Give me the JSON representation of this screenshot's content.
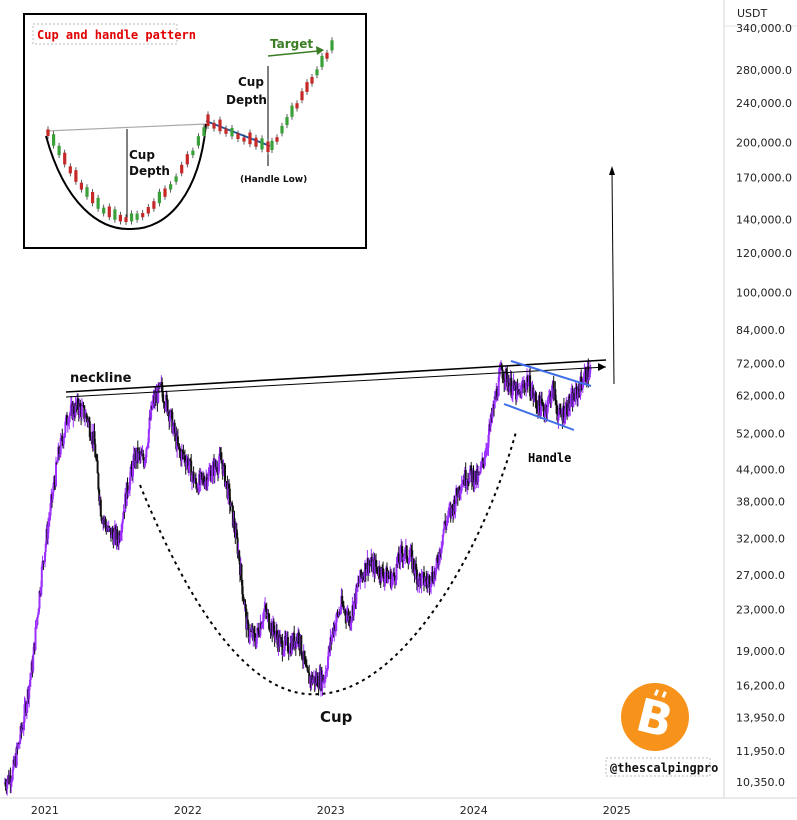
{
  "chart_data": {
    "type": "candlestick",
    "title": "",
    "currency_label": "USDT",
    "y_scale": "log",
    "ylim": [
      9800,
      380000
    ],
    "y_ticks": [
      "340,000.0",
      "280,000.0",
      "240,000.0",
      "200,000.0",
      "170,000.0",
      "140,000.0",
      "120,000.0",
      "100,000.0",
      "84,000.0",
      "72,000.0",
      "62,000.0",
      "52,000.0",
      "44,000.0",
      "38,000.0",
      "32,000.0",
      "27,000.0",
      "23,000.0",
      "19,000.0",
      "16,200.0",
      "13,950.0",
      "11,950.0",
      "10,350.0"
    ],
    "y_tick_values": [
      340000,
      280000,
      240000,
      200000,
      170000,
      140000,
      120000,
      100000,
      84000,
      72000,
      62000,
      52000,
      44000,
      38000,
      32000,
      27000,
      23000,
      19000,
      16200,
      13950,
      11950,
      10350
    ],
    "x_ticks": [
      "2021",
      "2022",
      "2023",
      "2024",
      "2025"
    ],
    "x_tick_values": [
      2021.0,
      2022.0,
      2023.0,
      2024.0,
      2025.0
    ],
    "xlim": [
      2020.7,
      2025.75
    ],
    "grid": false,
    "price_path": [
      [
        2020.72,
        10300
      ],
      [
        2020.78,
        10800
      ],
      [
        2020.85,
        13500
      ],
      [
        2020.92,
        18000
      ],
      [
        2020.98,
        27000
      ],
      [
        2021.04,
        36000
      ],
      [
        2021.1,
        47000
      ],
      [
        2021.17,
        57000
      ],
      [
        2021.24,
        59000
      ],
      [
        2021.3,
        56000
      ],
      [
        2021.35,
        50000
      ],
      [
        2021.4,
        36000
      ],
      [
        2021.45,
        33000
      ],
      [
        2021.52,
        32000
      ],
      [
        2021.58,
        40000
      ],
      [
        2021.64,
        47000
      ],
      [
        2021.7,
        46000
      ],
      [
        2021.76,
        60000
      ],
      [
        2021.82,
        64000
      ],
      [
        2021.88,
        57000
      ],
      [
        2021.94,
        48000
      ],
      [
        2022.0,
        46000
      ],
      [
        2022.06,
        41000
      ],
      [
        2022.12,
        42000
      ],
      [
        2022.18,
        44000
      ],
      [
        2022.24,
        46000
      ],
      [
        2022.3,
        38000
      ],
      [
        2022.36,
        30000
      ],
      [
        2022.42,
        21000
      ],
      [
        2022.48,
        20000
      ],
      [
        2022.54,
        23000
      ],
      [
        2022.6,
        21000
      ],
      [
        2022.66,
        19500
      ],
      [
        2022.72,
        19500
      ],
      [
        2022.78,
        20500
      ],
      [
        2022.84,
        16800
      ],
      [
        2022.9,
        16600
      ],
      [
        2022.96,
        16800
      ],
      [
        2023.02,
        21000
      ],
      [
        2023.08,
        23500
      ],
      [
        2023.14,
        22000
      ],
      [
        2023.2,
        26000
      ],
      [
        2023.26,
        28500
      ],
      [
        2023.32,
        28000
      ],
      [
        2023.38,
        27000
      ],
      [
        2023.44,
        26500
      ],
      [
        2023.5,
        30000
      ],
      [
        2023.56,
        29500
      ],
      [
        2023.62,
        26500
      ],
      [
        2023.68,
        26200
      ],
      [
        2023.74,
        27500
      ],
      [
        2023.8,
        34000
      ],
      [
        2023.86,
        37000
      ],
      [
        2023.92,
        42000
      ],
      [
        2023.98,
        43000
      ],
      [
        2024.04,
        42000
      ],
      [
        2024.1,
        50000
      ],
      [
        2024.16,
        62000
      ],
      [
        2024.2,
        70000
      ],
      [
        2024.26,
        65000
      ],
      [
        2024.32,
        62000
      ],
      [
        2024.38,
        67000
      ],
      [
        2024.44,
        60000
      ],
      [
        2024.5,
        58000
      ],
      [
        2024.56,
        64000
      ],
      [
        2024.6,
        56000
      ],
      [
        2024.66,
        59000
      ],
      [
        2024.72,
        62000
      ],
      [
        2024.78,
        68000
      ],
      [
        2024.82,
        69000
      ]
    ],
    "annotations": [
      {
        "text": "neckline"
      },
      {
        "text": "Cup"
      },
      {
        "text": "Handle"
      },
      {
        "text": "@thescalpingpro"
      }
    ],
    "inset": {
      "title": "Cup and handle pattern",
      "labels": [
        "Target",
        "Cup Depth",
        "Cup Depth",
        "(Handle Low)"
      ]
    },
    "colors": {
      "bull": "#9b30ff",
      "bear": "#111111",
      "handle_channel": "#3f6fe8",
      "target_arrow": "#3a7d23",
      "bitcoin_logo": "#f7931a"
    }
  }
}
